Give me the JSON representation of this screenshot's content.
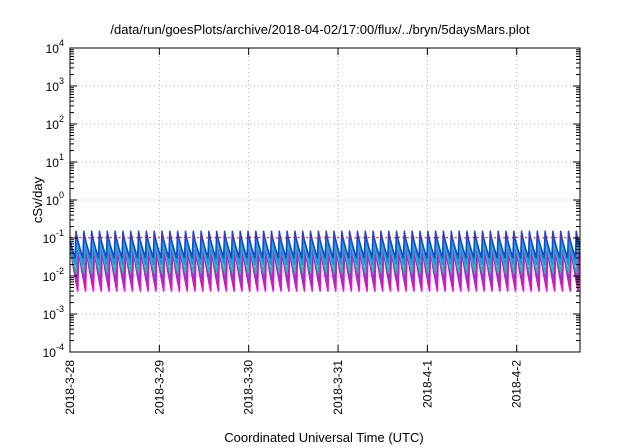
{
  "chart_data": {
    "type": "line",
    "title": "/data/run/goesPlots/archive/2018-04-02/17:00/flux/../bryn/5daysMars.plot",
    "xlabel": "Coordinated Universal Time (UTC)",
    "ylabel": "cSv/day",
    "yscale": "log",
    "ylim": [
      0.0001,
      10000
    ],
    "xlim": [
      "2018-03-28 00:00",
      "2018-04-02 17:00"
    ],
    "grid": true,
    "y_ticks": [
      {
        "value": 0.0001,
        "base": "10",
        "exp": "-4"
      },
      {
        "value": 0.001,
        "base": "10",
        "exp": "-3"
      },
      {
        "value": 0.01,
        "base": "10",
        "exp": "-2"
      },
      {
        "value": 0.1,
        "base": "10",
        "exp": "-1"
      },
      {
        "value": 1,
        "base": "10",
        "exp": "0"
      },
      {
        "value": 10,
        "base": "10",
        "exp": "1"
      },
      {
        "value": 100,
        "base": "10",
        "exp": "2"
      },
      {
        "value": 1000,
        "base": "10",
        "exp": "3"
      },
      {
        "value": 10000,
        "base": "10",
        "exp": "4"
      }
    ],
    "x_ticks": [
      "2018-3-28",
      "2018-3-29",
      "2018-3-30",
      "2018-3-31",
      "2018-4-1",
      "2018-4-2"
    ],
    "sawtooth_period_hours": 2.1,
    "series": [
      {
        "color": "#ff00ff",
        "peak": 0.055,
        "trough": 0.004
      },
      {
        "color": "#cc2299",
        "peak": 0.065,
        "trough": 0.005
      },
      {
        "color": "#9933cc",
        "peak": 0.08,
        "trough": 0.007
      },
      {
        "color": "#22bbaa",
        "peak": 0.09,
        "trough": 0.012
      },
      {
        "color": "#1199ee",
        "peak": 0.12,
        "trough": 0.02
      },
      {
        "color": "#2244cc",
        "peak": 0.15,
        "trough": 0.03
      },
      {
        "color": "#ff0000",
        "peak": 0.11,
        "trough": 0.1
      }
    ]
  }
}
